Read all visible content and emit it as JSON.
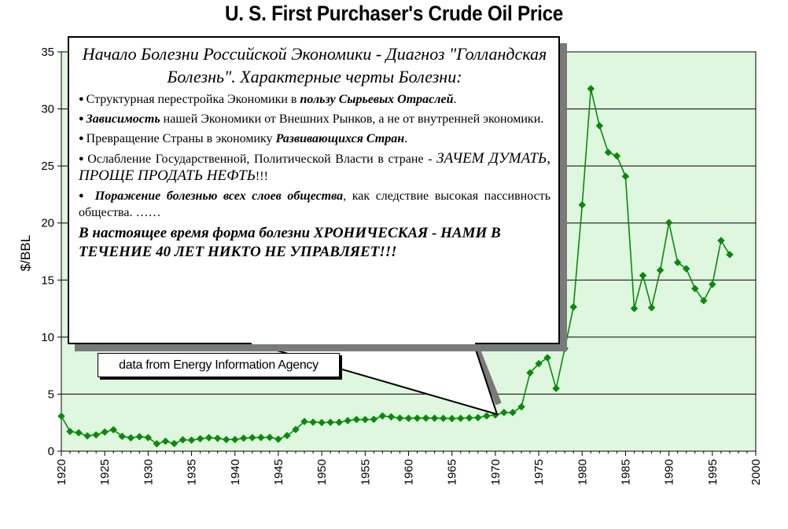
{
  "chart_data": {
    "type": "line",
    "title": "U. S. First Purchaser's Crude Oil Price",
    "ylabel": "$/BBL",
    "xlabel": "",
    "xlim": [
      1920,
      2000
    ],
    "ylim": [
      0,
      35
    ],
    "x_ticks": [
      "1920",
      "1925",
      "1930",
      "1935",
      "1940",
      "1945",
      "1950",
      "1955",
      "1960",
      "1965",
      "1970",
      "1975",
      "1980",
      "1985",
      "1990",
      "1995",
      "2000"
    ],
    "y_ticks": [
      "0",
      "5",
      "10",
      "15",
      "20",
      "25",
      "30",
      "35"
    ],
    "grid": true,
    "colors": {
      "background": "#dff7df",
      "line": "#0a8a0a"
    },
    "series": [
      {
        "x": [
          1920,
          1921,
          1922,
          1923,
          1924,
          1925,
          1926,
          1927,
          1928,
          1929,
          1930,
          1931,
          1932,
          1933,
          1934,
          1935,
          1936,
          1937,
          1938,
          1939,
          1940,
          1941,
          1942,
          1943,
          1944,
          1945,
          1946,
          1947,
          1948,
          1949,
          1950,
          1951,
          1952,
          1953,
          1954,
          1955,
          1956,
          1957,
          1958,
          1959,
          1960,
          1961,
          1962,
          1963,
          1964,
          1965,
          1966,
          1967,
          1968,
          1969,
          1970,
          1971,
          1972,
          1973,
          1974,
          1975,
          1976,
          1977,
          1978,
          1979,
          1980,
          1981,
          1982,
          1983,
          1984,
          1985,
          1986,
          1987,
          1988,
          1989,
          1990,
          1991,
          1992,
          1993,
          1994,
          1995,
          1996,
          1997
        ],
        "values": [
          3.07,
          1.73,
          1.61,
          1.34,
          1.43,
          1.68,
          1.88,
          1.3,
          1.17,
          1.27,
          1.19,
          0.65,
          0.87,
          0.67,
          1.0,
          0.97,
          1.09,
          1.18,
          1.13,
          1.02,
          1.02,
          1.14,
          1.19,
          1.2,
          1.21,
          1.05,
          1.37,
          1.9,
          2.6,
          2.54,
          2.51,
          2.53,
          2.53,
          2.68,
          2.78,
          2.77,
          2.79,
          3.09,
          3.01,
          2.9,
          2.88,
          2.89,
          2.9,
          2.89,
          2.88,
          2.86,
          2.88,
          2.92,
          2.94,
          3.09,
          3.18,
          3.39,
          3.39,
          3.89,
          6.87,
          7.67,
          8.19,
          5.5,
          9.0,
          12.64,
          21.59,
          31.77,
          28.52,
          26.19,
          25.88,
          24.09,
          12.51,
          15.4,
          12.58,
          15.86,
          20.03,
          16.54,
          15.99,
          14.25,
          13.19,
          14.62,
          18.46,
          17.23
        ]
      }
    ]
  },
  "callout": {
    "title": "Начало Болезни Российской Экономики - Диагноз \"Голландская Болезнь\".  Характерные черты Болезни:",
    "bullets": [
      {
        "pre": "Структурная перестройка Экономики в ",
        "emph": "пользу Сырьевых Отраслей",
        "post": "."
      },
      {
        "pre": "",
        "emph": "Зависимость",
        "post": " нашей Экономики от Внешних Рынков, а не от внутренней экономики."
      },
      {
        "pre": "Превращение Страны  в экономику ",
        "emph": "Развивающихся Стран",
        "post": "."
      },
      {
        "pre": "Ослабление Государственной, Политической Власти в стране - ",
        "emph": "ЗАЧЕМ ДУМАТЬ, ПРОЩЕ ПРОДАТЬ НЕФТЬ",
        "post": "!!!"
      },
      {
        "pre": " ",
        "emph": "Поражение болезнью всех слоев общества",
        "post": ", как следствие высокая пассивность общества. ……"
      }
    ],
    "footer": "В настоящее время форма болезни ХРОНИЧЕСКАЯ - НАМИ В ТЕЧЕНИЕ 40 ЛЕТ НИКТО НЕ УПРАВЛЯЕТ!!!",
    "bullet_symbol": "●"
  },
  "source_note": "data from Energy Information Agency"
}
